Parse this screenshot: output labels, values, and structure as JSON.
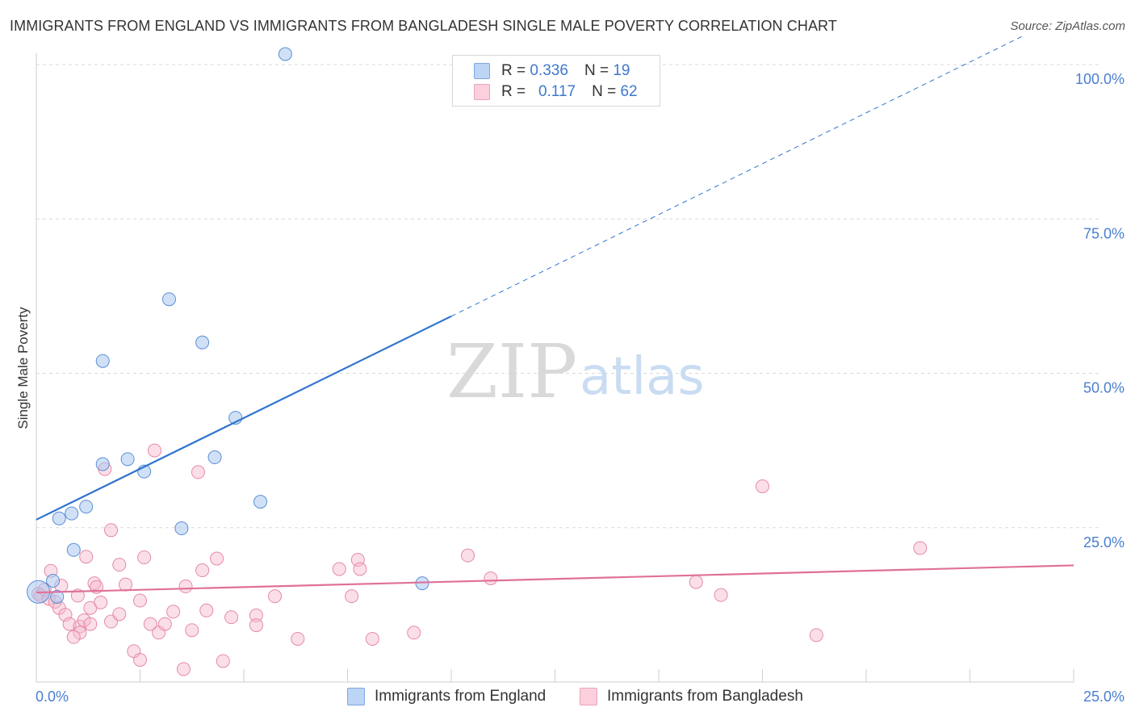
{
  "header": {
    "title": "IMMIGRANTS FROM ENGLAND VS IMMIGRANTS FROM BANGLADESH SINGLE MALE POVERTY CORRELATION CHART",
    "source": "Source: ZipAtlas.com"
  },
  "watermark": {
    "zip": "ZIP",
    "atlas": "atlas"
  },
  "legend": {
    "rows": [
      {
        "r_label": "R =",
        "r_value": "0.336",
        "n_label": "N =",
        "n_value": "19",
        "color": "#a9c8f0"
      },
      {
        "r_label": "R =",
        "r_value": "0.117",
        "n_label": "N =",
        "n_value": "62",
        "color": "#f7b9cb"
      }
    ]
  },
  "bottom_legend": {
    "england": "Immigrants from England",
    "bangladesh": "Immigrants from Bangladesh"
  },
  "chart_data": {
    "type": "scatter",
    "title": "IMMIGRANTS FROM ENGLAND VS IMMIGRANTS FROM BANGLADESH SINGLE MALE POVERTY CORRELATION CHART",
    "xlabel": "",
    "ylabel": "Single Male Poverty",
    "xlim": [
      0,
      25
    ],
    "ylim": [
      0,
      100
    ],
    "x_tick_labels": {
      "min": "0.0%",
      "max": "25.0%"
    },
    "y_tick_labels": [
      {
        "value": 100,
        "label": "100.0%"
      },
      {
        "value": 75,
        "label": "75.0%"
      },
      {
        "value": 50,
        "label": "50.0%"
      },
      {
        "value": 25,
        "label": "25.0%"
      }
    ],
    "grid": true,
    "series": [
      {
        "name": "Immigrants from England",
        "color": "#a9c8f0",
        "stroke": "#5b8fd6",
        "line_color": "#2f74cf",
        "R": 0.336,
        "N": 19,
        "trend": {
          "x0": 0,
          "y0": 26.3,
          "x_solid_end": 10.0,
          "x1": 23.8,
          "y1": 104.7
        },
        "points": [
          [
            0.05,
            14.6
          ],
          [
            0.4,
            16.4
          ],
          [
            0.5,
            13.8
          ],
          [
            0.55,
            26.5
          ],
          [
            0.85,
            27.3
          ],
          [
            0.9,
            21.4
          ],
          [
            1.2,
            28.4
          ],
          [
            1.6,
            35.3
          ],
          [
            1.6,
            52.0
          ],
          [
            2.2,
            36.1
          ],
          [
            2.6,
            34.1
          ],
          [
            3.2,
            62.0
          ],
          [
            3.5,
            24.9
          ],
          [
            4.0,
            55.0
          ],
          [
            4.3,
            36.4
          ],
          [
            4.8,
            42.8
          ],
          [
            5.4,
            29.2
          ],
          [
            6.0,
            101.7
          ],
          [
            9.3,
            16.0
          ]
        ]
      },
      {
        "name": "Immigrants from Bangladesh",
        "color": "#f7b9cb",
        "stroke": "#e58aa7",
        "line_color": "#e0709a",
        "R": 0.117,
        "N": 62,
        "trend": {
          "x0": 0,
          "y0": 14.5,
          "x1": 25,
          "y1": 18.9
        },
        "points": [
          [
            0.05,
            14.3
          ],
          [
            0.1,
            14.0
          ],
          [
            0.2,
            15.0
          ],
          [
            0.3,
            13.5
          ],
          [
            0.35,
            18.0
          ],
          [
            0.45,
            13.0
          ],
          [
            0.55,
            12.0
          ],
          [
            0.6,
            15.6
          ],
          [
            0.7,
            10.9
          ],
          [
            0.8,
            9.4
          ],
          [
            1.0,
            14.0
          ],
          [
            1.05,
            9.0
          ],
          [
            1.05,
            8.0
          ],
          [
            1.15,
            10.0
          ],
          [
            1.2,
            20.3
          ],
          [
            1.3,
            12.0
          ],
          [
            1.3,
            9.4
          ],
          [
            1.4,
            16.0
          ],
          [
            1.45,
            15.4
          ],
          [
            1.55,
            12.9
          ],
          [
            1.65,
            34.5
          ],
          [
            1.8,
            24.6
          ],
          [
            1.8,
            9.8
          ],
          [
            2.0,
            11.0
          ],
          [
            2.0,
            19.0
          ],
          [
            2.15,
            15.8
          ],
          [
            2.35,
            5.0
          ],
          [
            2.5,
            3.6
          ],
          [
            2.5,
            13.2
          ],
          [
            2.6,
            20.2
          ],
          [
            2.75,
            9.4
          ],
          [
            2.85,
            37.5
          ],
          [
            2.95,
            8.0
          ],
          [
            3.1,
            9.4
          ],
          [
            3.55,
            2.1
          ],
          [
            3.6,
            15.5
          ],
          [
            3.75,
            8.4
          ],
          [
            3.9,
            34.0
          ],
          [
            4.0,
            18.1
          ],
          [
            4.1,
            11.6
          ],
          [
            4.35,
            20.0
          ],
          [
            4.5,
            3.4
          ],
          [
            5.3,
            10.8
          ],
          [
            5.3,
            9.2
          ],
          [
            5.75,
            13.9
          ],
          [
            6.3,
            7.0
          ],
          [
            7.3,
            18.3
          ],
          [
            7.6,
            13.9
          ],
          [
            7.75,
            19.8
          ],
          [
            7.8,
            18.3
          ],
          [
            8.1,
            7.0
          ],
          [
            9.1,
            8.0
          ],
          [
            10.4,
            20.5
          ],
          [
            10.95,
            16.8
          ],
          [
            15.9,
            16.2
          ],
          [
            16.5,
            14.1
          ],
          [
            17.5,
            31.7
          ],
          [
            18.8,
            7.6
          ],
          [
            21.3,
            21.7
          ],
          [
            4.7,
            10.5
          ],
          [
            0.9,
            7.3
          ],
          [
            3.3,
            11.4
          ]
        ]
      }
    ]
  }
}
